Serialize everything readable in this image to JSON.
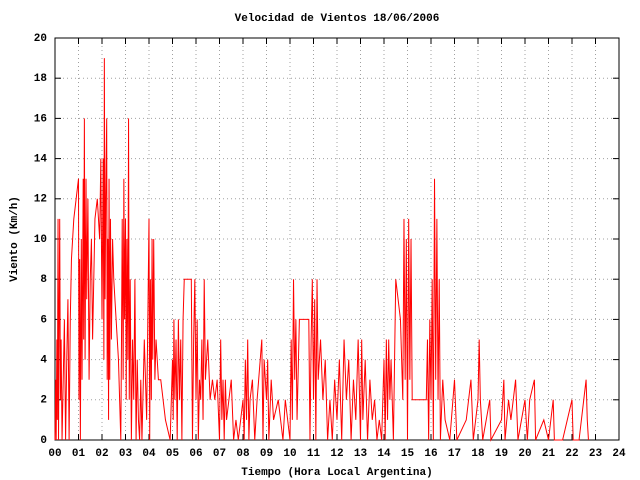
{
  "chart_data": {
    "type": "line",
    "title": "Velocidad de Vientos 18/06/2006",
    "xlabel": "Tiempo (Hora Local Argentina)",
    "ylabel": "Viento (Km/h)",
    "grid": true,
    "xlim": [
      0,
      24
    ],
    "ylim": [
      0,
      20
    ],
    "yticks": [
      0,
      2,
      4,
      6,
      8,
      10,
      12,
      14,
      16,
      18,
      20
    ],
    "xticks": [
      {
        "value": 0,
        "label": "00"
      },
      {
        "value": 1,
        "label": "01"
      },
      {
        "value": 2,
        "label": "02"
      },
      {
        "value": 3,
        "label": "03"
      },
      {
        "value": 4,
        "label": "04"
      },
      {
        "value": 5,
        "label": "05"
      },
      {
        "value": 6,
        "label": "06"
      },
      {
        "value": 7,
        "label": "07"
      },
      {
        "value": 8,
        "label": "08"
      },
      {
        "value": 9,
        "label": "09"
      },
      {
        "value": 10,
        "label": "10"
      },
      {
        "value": 11,
        "label": "11"
      },
      {
        "value": 12,
        "label": "12"
      },
      {
        "value": 13,
        "label": "13"
      },
      {
        "value": 14,
        "label": "14"
      },
      {
        "value": 15,
        "label": "15"
      },
      {
        "value": 16,
        "label": "16"
      },
      {
        "value": 17,
        "label": "17"
      },
      {
        "value": 18,
        "label": "18"
      },
      {
        "value": 19,
        "label": "19"
      },
      {
        "value": 20,
        "label": "20"
      },
      {
        "value": 21,
        "label": "21"
      },
      {
        "value": 22,
        "label": "22"
      },
      {
        "value": 23,
        "label": "23"
      },
      {
        "value": 24,
        "label": "24"
      }
    ],
    "color": "#ff0000",
    "x": [
      0.0,
      0.03,
      0.05,
      0.08,
      0.1,
      0.13,
      0.15,
      0.18,
      0.2,
      0.23,
      0.26,
      0.3,
      0.35,
      0.4,
      0.45,
      0.5,
      0.55,
      0.6,
      0.65,
      0.7,
      0.8,
      0.9,
      1.0,
      1.02,
      1.05,
      1.08,
      1.12,
      1.15,
      1.2,
      1.22,
      1.25,
      1.28,
      1.32,
      1.35,
      1.4,
      1.45,
      1.5,
      1.55,
      1.6,
      1.7,
      1.8,
      1.9,
      1.95,
      2.0,
      2.05,
      2.08,
      2.1,
      2.13,
      2.16,
      2.2,
      2.22,
      2.25,
      2.28,
      2.3,
      2.33,
      2.36,
      2.4,
      2.45,
      2.5,
      2.6,
      2.7,
      2.75,
      2.8,
      2.83,
      2.86,
      2.9,
      2.93,
      2.96,
      3.0,
      3.03,
      3.06,
      3.1,
      3.13,
      3.16,
      3.2,
      3.25,
      3.3,
      3.35,
      3.4,
      3.45,
      3.5,
      3.55,
      3.6,
      3.65,
      3.7,
      3.8,
      3.9,
      4.0,
      4.03,
      4.06,
      4.1,
      4.13,
      4.16,
      4.2,
      4.25,
      4.3,
      4.4,
      4.5,
      4.7,
      4.9,
      5.0,
      5.03,
      5.06,
      5.1,
      5.15,
      5.2,
      5.25,
      5.3,
      5.35,
      5.4,
      5.45,
      5.5,
      5.8,
      5.85,
      5.9,
      5.95,
      6.0,
      6.05,
      6.1,
      6.15,
      6.2,
      6.25,
      6.3,
      6.35,
      6.4,
      6.5,
      6.6,
      6.7,
      6.8,
      6.9,
      7.0,
      7.05,
      7.1,
      7.15,
      7.2,
      7.25,
      7.3,
      7.4,
      7.5,
      7.6,
      7.7,
      7.8,
      8.0,
      8.05,
      8.1,
      8.15,
      8.2,
      8.25,
      8.3,
      8.4,
      8.5,
      8.6,
      8.8,
      8.85,
      8.9,
      9.0,
      9.05,
      9.1,
      9.2,
      9.3,
      9.5,
      9.7,
      9.8,
      10.0,
      10.05,
      10.1,
      10.15,
      10.2,
      10.25,
      10.3,
      10.4,
      10.6,
      10.8,
      10.85,
      10.9,
      10.95,
      11.0,
      11.05,
      11.1,
      11.15,
      11.2,
      11.3,
      11.4,
      11.5,
      11.6,
      11.7,
      11.8,
      11.9,
      12.0,
      12.1,
      12.2,
      12.3,
      12.4,
      12.5,
      12.6,
      12.7,
      12.8,
      12.9,
      13.0,
      13.05,
      13.1,
      13.2,
      13.3,
      13.4,
      13.5,
      13.6,
      13.7,
      13.8,
      13.9,
      14.0,
      14.05,
      14.1,
      14.15,
      14.2,
      14.25,
      14.3,
      14.4,
      14.5,
      14.7,
      14.8,
      14.85,
      14.9,
      14.95,
      15.0,
      15.05,
      15.1,
      15.15,
      15.2,
      15.4,
      15.6,
      15.8,
      15.85,
      15.9,
      15.95,
      16.0,
      16.05,
      16.1,
      16.15,
      16.2,
      16.25,
      16.3,
      16.35,
      16.4,
      16.5,
      16.6,
      16.8,
      17.0,
      17.1,
      17.5,
      17.7,
      17.8,
      18.0,
      18.05,
      18.1,
      18.2,
      18.5,
      18.55,
      19.0,
      19.1,
      19.15,
      19.3,
      19.4,
      19.6,
      19.7,
      20.0,
      20.1,
      20.2,
      20.4,
      20.45,
      20.8,
      21.0,
      21.2,
      21.25,
      21.6,
      22.0,
      22.05,
      22.3,
      22.5,
      22.6,
      22.65,
      22.7
    ],
    "values": [
      0,
      3,
      0,
      5,
      1,
      11,
      0,
      7,
      11,
      2,
      5,
      0,
      3,
      6,
      0,
      4,
      7,
      0,
      6,
      9,
      11,
      12,
      13,
      2,
      9,
      0,
      10,
      3,
      13,
      5,
      16,
      4,
      13,
      7,
      12,
      3,
      8,
      10,
      5,
      11,
      12,
      10,
      14,
      6,
      14,
      4,
      19,
      7,
      12,
      16,
      3,
      10,
      1,
      13,
      3,
      11,
      5,
      10,
      8,
      6,
      4,
      2,
      0,
      5,
      11,
      3,
      13,
      6,
      11,
      2,
      10,
      4,
      16,
      2,
      8,
      0,
      5,
      2,
      8,
      0,
      4,
      1,
      0,
      3,
      0,
      5,
      1,
      11,
      0,
      8,
      2,
      10,
      4,
      10,
      3,
      5,
      3,
      3,
      1,
      0,
      4,
      1,
      6,
      2,
      5,
      0,
      6,
      2,
      5,
      0,
      6,
      8,
      8,
      0,
      5,
      8,
      2,
      6,
      0,
      3,
      2,
      5,
      1,
      8,
      3,
      5,
      2,
      3,
      2,
      3,
      0,
      5,
      1,
      3,
      0,
      3,
      1,
      2,
      3,
      0,
      1,
      0,
      2,
      0,
      4,
      1,
      5,
      0,
      2,
      3,
      0,
      2,
      5,
      0,
      4,
      2,
      4,
      0,
      3,
      1,
      2,
      0,
      2,
      0,
      5,
      1,
      8,
      3,
      6,
      1,
      6,
      6,
      6,
      0,
      5,
      8,
      2,
      7,
      0,
      8,
      3,
      5,
      2,
      4,
      0,
      2,
      0,
      3,
      1,
      4,
      0,
      5,
      2,
      4,
      0,
      3,
      1,
      5,
      0,
      5,
      1,
      4,
      0,
      3,
      1,
      2,
      0,
      1,
      0,
      4,
      0,
      5,
      1,
      5,
      2,
      4,
      0,
      8,
      6,
      2,
      11,
      3,
      10,
      0,
      11,
      3,
      10,
      2,
      2,
      2,
      2,
      5,
      0,
      6,
      2,
      8,
      0,
      13,
      3,
      11,
      2,
      8,
      0,
      3,
      1,
      0,
      3,
      0,
      1,
      3,
      0,
      2,
      5,
      2,
      0,
      2,
      0,
      1,
      3,
      0,
      2,
      1,
      3,
      0,
      2,
      0,
      2,
      3,
      0,
      1,
      0,
      2,
      0,
      0,
      2,
      0,
      0,
      2,
      3,
      1,
      0
    ]
  }
}
